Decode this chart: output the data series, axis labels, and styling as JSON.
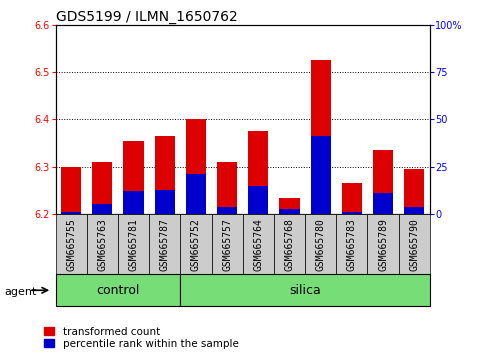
{
  "title": "GDS5199 / ILMN_1650762",
  "samples": [
    "GSM665755",
    "GSM665763",
    "GSM665781",
    "GSM665787",
    "GSM665752",
    "GSM665757",
    "GSM665764",
    "GSM665768",
    "GSM665780",
    "GSM665783",
    "GSM665789",
    "GSM665790"
  ],
  "red_values": [
    6.3,
    6.31,
    6.355,
    6.365,
    6.4,
    6.31,
    6.375,
    6.235,
    6.525,
    6.265,
    6.335,
    6.295
  ],
  "blue_values": [
    6.205,
    6.222,
    6.248,
    6.25,
    6.285,
    6.215,
    6.26,
    6.21,
    6.365,
    6.205,
    6.245,
    6.215
  ],
  "base": 6.2,
  "ylim_left": [
    6.2,
    6.6
  ],
  "ylim_right": [
    0,
    100
  ],
  "yticks_left": [
    6.2,
    6.3,
    6.4,
    6.5,
    6.6
  ],
  "yticks_right": [
    0,
    25,
    50,
    75,
    100
  ],
  "ytick_labels_right": [
    "0",
    "25",
    "50",
    "75",
    "100%"
  ],
  "n_control": 4,
  "n_total": 12,
  "agent_label": "agent",
  "bar_width": 0.65,
  "red_color": "#dd0000",
  "blue_color": "#0000cc",
  "group_bg": "#77dd77",
  "tick_bg": "#cccccc",
  "legend_red": "transformed count",
  "legend_blue": "percentile rank within the sample",
  "title_fontsize": 10,
  "legend_fontsize": 7.5,
  "tick_fontsize": 7,
  "group_fontsize": 9
}
